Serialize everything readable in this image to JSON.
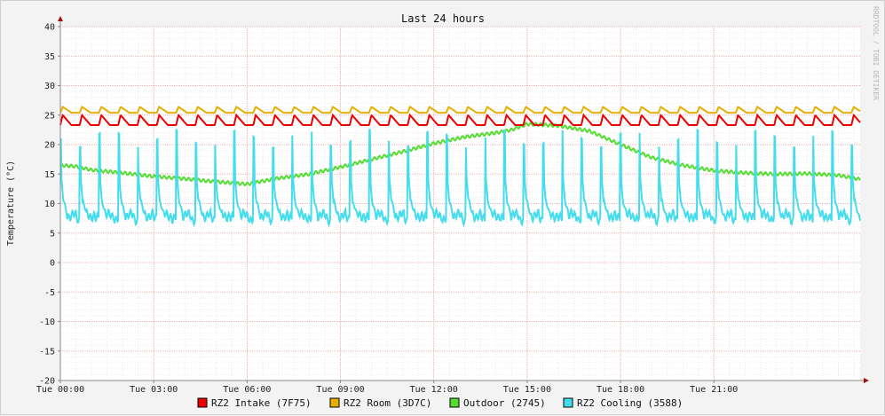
{
  "chart_data": {
    "type": "line",
    "title": "Last 24 hours",
    "ylabel": "Temperature (°C)",
    "watermark": "RRDTOOL / TOBI OETIKER",
    "ylim": [
      -20,
      40
    ],
    "y_ticks": [
      40,
      35,
      30,
      25,
      20,
      15,
      10,
      5,
      0,
      -5,
      -10,
      -15,
      -20
    ],
    "x_range_hours": [
      0,
      25.7
    ],
    "x_ticks": [
      {
        "hour": 0,
        "label": "Tue 00:00"
      },
      {
        "hour": 3,
        "label": "Tue 03:00"
      },
      {
        "hour": 6,
        "label": "Tue 06:00"
      },
      {
        "hour": 9,
        "label": "Tue 09:00"
      },
      {
        "hour": 12,
        "label": "Tue 12:00"
      },
      {
        "hour": 15,
        "label": "Tue 15:00"
      },
      {
        "hour": 18,
        "label": "Tue 18:00"
      },
      {
        "hour": 21,
        "label": "Tue 21:00"
      }
    ],
    "series": [
      {
        "name": "RZ2 Intake (7F75)",
        "color": "#ee0000",
        "pattern": "sawtooth",
        "baseline": 23.3,
        "peak": 25.0,
        "cycle_hours": 0.62,
        "x": [
          0.0,
          25.7
        ]
      },
      {
        "name": "RZ2 Room (3D7C)",
        "color": "#e6b000",
        "pattern": "sawtooth",
        "baseline": 25.4,
        "peak": 26.4,
        "cycle_hours": 0.62,
        "x": [
          0.0,
          25.7
        ]
      },
      {
        "name": "Outdoor (2745)",
        "color": "#55dd33",
        "pattern": "path",
        "x": [
          0,
          0.5,
          1.0,
          2.0,
          3.0,
          4.0,
          5.0,
          6.0,
          7.0,
          8.0,
          9.0,
          10.0,
          11.0,
          12.0,
          13.0,
          14.0,
          14.5,
          15.0,
          16.0,
          17.0,
          18.0,
          19.0,
          20.0,
          21.0,
          22.0,
          23.0,
          24.0,
          25.0,
          25.7
        ],
        "values": [
          16.5,
          16.3,
          15.7,
          15.2,
          14.6,
          14.2,
          13.7,
          13.3,
          14.3,
          15.0,
          16.2,
          17.5,
          18.8,
          20.2,
          21.3,
          22.0,
          22.5,
          23.5,
          23.2,
          22.3,
          20.0,
          17.8,
          16.5,
          15.6,
          15.2,
          15.0,
          15.1,
          14.8,
          14.1
        ]
      },
      {
        "name": "RZ2 Cooling (3588)",
        "color": "#44ddee",
        "pattern": "spikes",
        "baseline": 8.0,
        "spike_peak": 21.0,
        "cycle_hours": 0.62,
        "x": [
          0.0,
          25.7
        ]
      }
    ],
    "grid": true,
    "legend_position": "bottom"
  }
}
